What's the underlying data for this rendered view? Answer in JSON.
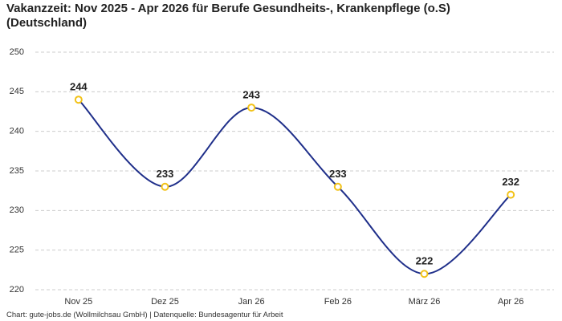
{
  "chart_data": {
    "type": "line",
    "title": "Vakanzzeit: Nov 2025 - Apr 2026 für Berufe Gesundheits-, Krankenpflege (o.S) (Deutschland)",
    "categories": [
      "Nov 25",
      "Dez 25",
      "Jan 26",
      "Feb 26",
      "März 26",
      "Apr 26"
    ],
    "values": [
      244,
      233,
      243,
      233,
      222,
      232
    ],
    "color": "#1f2f8a",
    "marker_color": "#f2c218",
    "ylim": [
      220,
      250
    ],
    "yticks": [
      220,
      225,
      230,
      235,
      240,
      245,
      250
    ],
    "grid": true,
    "source": "Chart: gute-jobs.de (Wollmilchsau GmbH) | Datenquelle: Bundesagentur für Arbeit"
  }
}
